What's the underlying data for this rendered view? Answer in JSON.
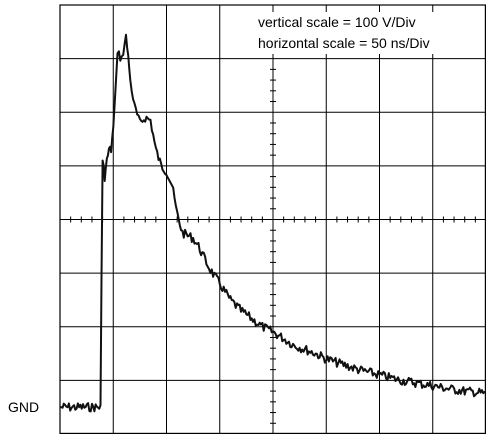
{
  "chart_data": {
    "type": "line",
    "title": "",
    "xlabel": "",
    "ylabel": "",
    "grid": true,
    "divisions": {
      "horizontal": 8,
      "vertical": 8
    },
    "annotations": [
      "vertical scale = 100 V/Div",
      "horizontal scale = 50 ns/Div"
    ],
    "ground_label": "GND",
    "units": {
      "x": "ns",
      "y": "V"
    },
    "xlim": [
      0,
      400
    ],
    "ylim": [
      -50,
      750
    ],
    "series": [
      {
        "x": [
          0,
          30,
          38,
          39,
          40,
          42,
          44,
          46,
          48,
          50,
          54,
          58,
          62,
          64,
          66,
          70,
          75,
          80,
          85,
          90,
          95,
          100,
          105,
          110,
          115,
          120,
          125,
          130,
          140,
          150,
          160,
          170,
          180,
          190,
          200,
          210,
          220,
          230,
          240,
          250,
          260,
          270,
          280,
          290,
          300,
          310,
          320,
          330,
          340,
          350,
          360,
          370,
          380,
          390,
          400
        ],
        "y": [
          0,
          0,
          0,
          240,
          460,
          430,
          460,
          480,
          480,
          520,
          660,
          650,
          690,
          655,
          610,
          560,
          530,
          540,
          535,
          480,
          450,
          440,
          415,
          360,
          325,
          320,
          315,
          300,
          260,
          230,
          200,
          180,
          165,
          150,
          140,
          128,
          115,
          108,
          100,
          90,
          83,
          77,
          70,
          65,
          60,
          55,
          50,
          47,
          43,
          40,
          36,
          33,
          30,
          28,
          25
        ]
      }
    ]
  }
}
